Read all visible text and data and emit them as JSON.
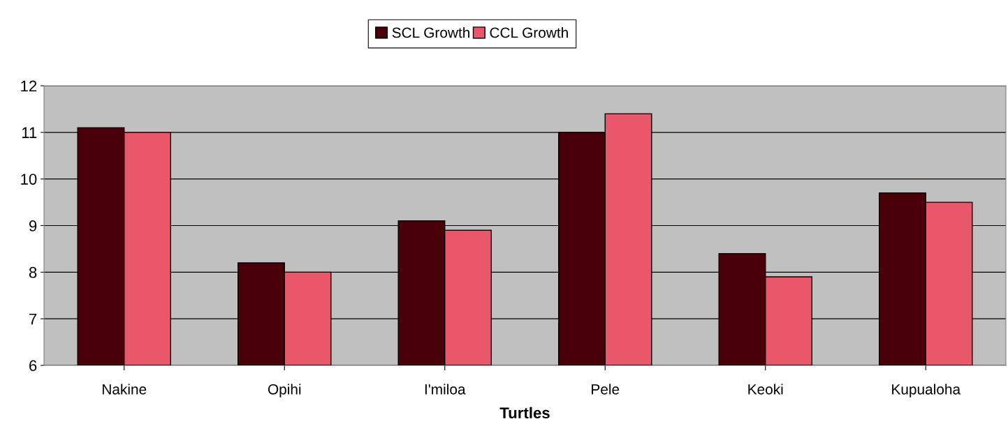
{
  "chart_data": {
    "type": "bar",
    "xlabel": "Turtles",
    "categories": [
      "Nakine",
      "Opihi",
      "I'miloa",
      "Pele",
      "Keoki",
      "Kupualoha"
    ],
    "series": [
      {
        "name": "SCL Growth",
        "color": "#4a0008",
        "values": [
          11.1,
          8.2,
          9.1,
          11.0,
          8.4,
          9.7
        ]
      },
      {
        "name": "CCL Growth",
        "color": "#e8586a",
        "values": [
          11.0,
          8.0,
          8.9,
          11.4,
          7.9,
          9.5
        ]
      }
    ],
    "ylim": [
      6,
      12
    ],
    "yticks": [
      6,
      7,
      8,
      9,
      10,
      11,
      12
    ],
    "grid": "y",
    "legend": "top"
  }
}
